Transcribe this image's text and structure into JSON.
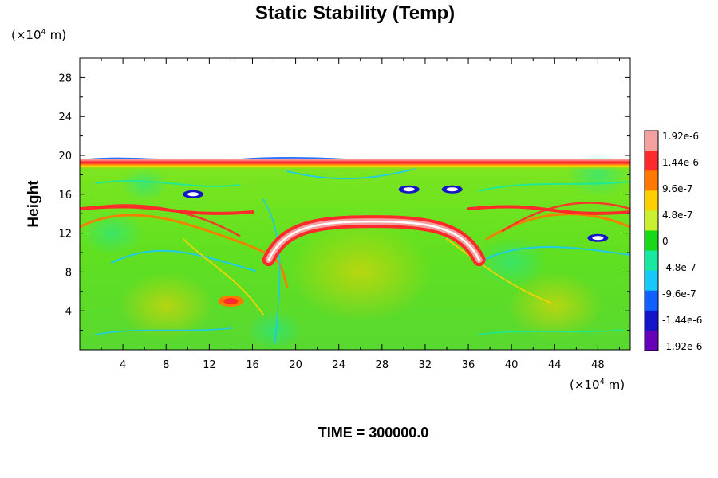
{
  "chart_data": {
    "type": "heatmap",
    "title": "Static Stability (Temp)",
    "ylabel": "Height",
    "y_unit": {
      "prefix": "(×10",
      "exponent": "4",
      "suffix": " m)"
    },
    "x_unit": {
      "prefix": "(×10",
      "exponent": "4",
      "suffix": " m)"
    },
    "xlim": [
      0,
      51
    ],
    "ylim": [
      0,
      30
    ],
    "x_ticks": [
      "4",
      "8",
      "12",
      "16",
      "20",
      "24",
      "28",
      "32",
      "36",
      "40",
      "44",
      "48"
    ],
    "y_ticks": [
      "4",
      "8",
      "12",
      "16",
      "20",
      "24",
      "28"
    ],
    "data_top": 19.6,
    "colorbar": {
      "labels": [
        "1.92e-6",
        "1.44e-6",
        "9.6e-7",
        "4.8e-7",
        "0",
        "-4.8e-7",
        "-9.6e-7",
        "-1.44e-6",
        "-1.92e-6"
      ],
      "colors": [
        "#f4a0a0",
        "#ff2a2a",
        "#ff7800",
        "#ffd000",
        "#c8f030",
        "#18d818",
        "#18e8a0",
        "#18c8f8",
        "#1060ff",
        "#1414c8",
        "#6800b8"
      ]
    },
    "features": [
      {
        "name": "stable-layer-upper",
        "x_start": 17.5,
        "x_end": 37,
        "y": 12.2,
        "value": 1.92e-06
      },
      {
        "name": "tropopause-band",
        "x_start": 0,
        "x_end": 51,
        "y": 19.3,
        "value": 1.44e-06
      },
      {
        "name": "stable-streak-left",
        "x_start": 0,
        "x_end": 16,
        "y": 14.5,
        "value": 1.44e-06
      },
      {
        "name": "stable-streak-right",
        "x_start": 36,
        "x_end": 51,
        "y": 14.5,
        "value": 1.44e-06
      },
      {
        "name": "hotspot-lower-left",
        "x": 14,
        "y": 5.0,
        "value": 1.44e-06
      },
      {
        "name": "unstable-patch-1",
        "x": 10.5,
        "y": 16,
        "value": -1.92e-06
      },
      {
        "name": "unstable-patch-2",
        "x": 30.5,
        "y": 16.5,
        "value": -1.92e-06
      },
      {
        "name": "unstable-patch-3",
        "x": 34.5,
        "y": 16.5,
        "value": -1.92e-06
      },
      {
        "name": "unstable-patch-4",
        "x": 48,
        "y": 11.5,
        "value": -1.92e-06
      }
    ],
    "grid": false
  },
  "footer": {
    "time_text": "TIME = 300000.0"
  }
}
